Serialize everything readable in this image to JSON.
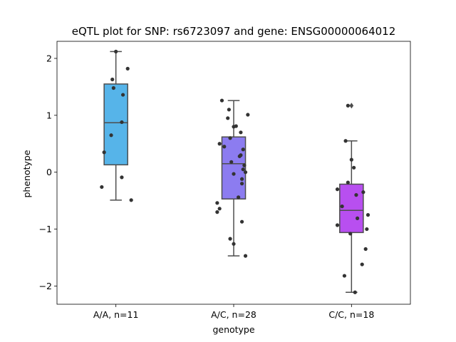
{
  "chart_data": {
    "type": "box",
    "title": "eQTL plot for SNP: rs6723097 and gene: ENSG00000064012",
    "xlabel": "genotype",
    "ylabel": "phenotype",
    "ylim": [
      -2.32,
      2.3
    ],
    "yticks": [
      -2,
      -1,
      0,
      1,
      2
    ],
    "ytick_labels": [
      "−2",
      "−1",
      "0",
      "1",
      "2"
    ],
    "grid": false,
    "categories": [
      "A/A, n=11",
      "A/C, n=28",
      "C/C, n=18"
    ],
    "colors": [
      "#56b4e9",
      "#8c7cf0",
      "#b84ff0"
    ],
    "boxes": [
      {
        "q1": 0.13,
        "median": 0.87,
        "q3": 1.55,
        "whisker_low": -0.49,
        "whisker_high": 2.12,
        "outliers": []
      },
      {
        "q1": -0.47,
        "median": 0.15,
        "q3": 0.62,
        "whisker_low": -1.47,
        "whisker_high": 1.26,
        "outliers": []
      },
      {
        "q1": -1.06,
        "median": -0.67,
        "q3": -0.21,
        "whisker_low": -2.11,
        "whisker_high": 0.55,
        "outliers": [
          1.17
        ]
      }
    ],
    "points": [
      [
        2.12,
        1.82,
        1.63,
        1.48,
        1.36,
        0.88,
        0.65,
        0.35,
        -0.09,
        -0.26,
        -0.49
      ],
      [
        1.26,
        1.1,
        1.01,
        0.95,
        0.81,
        0.7,
        0.6,
        0.5,
        0.45,
        0.4,
        0.3,
        0.28,
        0.18,
        0.12,
        0.05,
        0.0,
        -0.03,
        -0.12,
        -0.2,
        -0.44,
        -0.54,
        -0.64,
        -0.7,
        -0.87,
        -1.17,
        -1.26,
        -1.47,
        0.8
      ],
      [
        1.17,
        0.55,
        0.22,
        0.08,
        -0.18,
        -0.3,
        -0.35,
        -0.4,
        -0.6,
        -0.75,
        -0.81,
        -0.93,
        -1.0,
        -1.08,
        -1.35,
        -1.62,
        -1.82,
        -2.11
      ]
    ],
    "jitter": [
      [
        0.0,
        0.1,
        -0.03,
        -0.02,
        0.06,
        0.05,
        -0.04,
        -0.1,
        0.05,
        -0.12,
        0.13
      ],
      [
        -0.1,
        -0.04,
        0.12,
        -0.05,
        0.02,
        0.06,
        -0.03,
        -0.12,
        -0.08,
        0.08,
        0.06,
        0.05,
        -0.02,
        0.09,
        0.08,
        0.1,
        0.0,
        0.07,
        0.07,
        0.04,
        -0.14,
        -0.12,
        -0.14,
        0.07,
        -0.03,
        0.0,
        0.1,
        0.0
      ],
      [
        -0.03,
        -0.05,
        0.0,
        0.02,
        -0.03,
        -0.12,
        0.1,
        0.04,
        -0.08,
        0.14,
        0.05,
        -0.12,
        0.13,
        -0.01,
        0.12,
        0.09,
        -0.06,
        0.03
      ]
    ]
  }
}
